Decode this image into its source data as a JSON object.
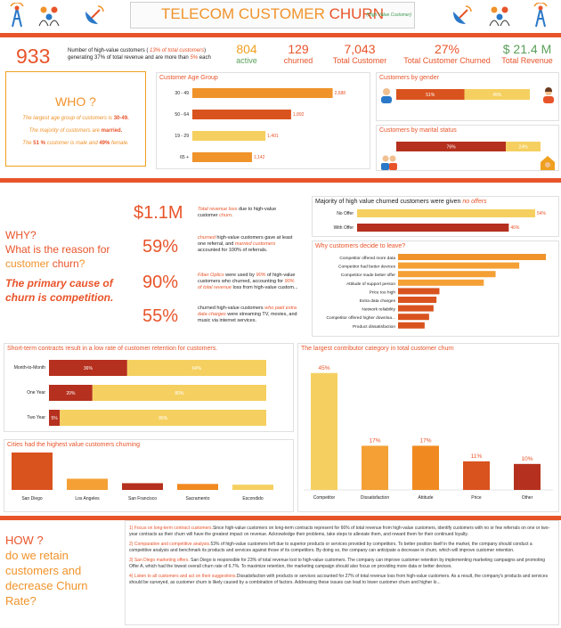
{
  "header": {
    "title_prefix": "TELECOM CUSTOMER ",
    "title_churn": "CHURN",
    "subtitle": "(High Value Customer)"
  },
  "kpis": {
    "high_value_count": "933",
    "high_value_desc_1": "Number of high-value customers ( ",
    "high_value_pct": "13% of total customers",
    "high_value_desc_2": ")",
    "high_value_desc_3": "generating 37% of total revenue and are more than ",
    "high_value_mult": "5%",
    "high_value_desc_4": " each",
    "active_n": "804",
    "active_l": "active",
    "churned_n": "129",
    "churned_l": "churned",
    "total_n": "7,043",
    "total_l": "Total Customer",
    "churnpct_n": "27%",
    "churnpct_l": "Total Customer Churned",
    "revenue_n": "$ 21.4 M",
    "revenue_l": "Total Revenue"
  },
  "who": {
    "heading": "WHO ?",
    "p1a": "The largest age group of customers is ",
    "p1b": "30-49.",
    "p2a": "The majority of customers are ",
    "p2b": "married.",
    "p3a": "The ",
    "p3b": "51 %",
    "p3c": " customer is male and ",
    "p3d": "49%",
    "p3e": " female."
  },
  "why": {
    "l1": "WHY?",
    "l2": "What is the reason for",
    "l3a": "customer ",
    "l3b": "churn",
    "l3c": "?",
    "c1": "The primary cause of",
    "c2": "churn is competition."
  },
  "stats": [
    {
      "n": "$1.1M",
      "t1": "Total revenue loss",
      "t2": " due to high-value",
      "t3": "customer ",
      "t4": "churn",
      "t5": "."
    },
    {
      "n": "59%",
      "t1": "churned",
      "t2": " high-value customers gave at least",
      "t3": "one referral, and ",
      "t4": "married customers",
      "t5": "accounted for 100% of referrals."
    },
    {
      "n": "90%",
      "t1": "Fiber Optics",
      "t2": " were used by ",
      "t3": "90%",
      "t4": " of high-value",
      "t5": "customers who churned, accounting for ",
      "t6": "90%",
      "t7": "of total revenue",
      "t8": " loss from high-value custom..."
    },
    {
      "n": "55%",
      "t1": "churned high-value customers ",
      "t2": "who paid extra",
      "t3": "data charges",
      "t4": " were streaming TV, movies, and",
      "t5": "music via internet services."
    }
  ],
  "how": {
    "l1": "HOW ?",
    "l2": "do we retain",
    "l3": "customers and",
    "l4": "decrease Churn",
    "l5": "Rate?"
  },
  "recs": [
    {
      "t": "1) Focus on long-term contract customers.",
      "b": "Since high-value customers on long-term contracts represent for 66% of total revenue from high-value customers, identify customers with no or few referrals on one or two-year contracts as their churn will have the greatest impact on revenue. Acknowledge their problems, take steps to alleviate them, and reward them for their continued loyalty."
    },
    {
      "t": "2) Comparative and competitive analysis.",
      "b": "53% of high-value customers left due to superior products or services provided by competitors. To better position itself in the market, the company should conduct a competitive analysis and benchmark its products and services against those of its competitors. By doing so, the company can anticipate a decrease in churn, which will improve customer retention."
    },
    {
      "t": "3) San Diego marketing offers.",
      "b": " San Diego is responsible for 23% of total revenue lost to high-value customers. The company can improve customer retention by implementing marketing campaigns and promoting Offer A, which had the lowest overall churn rate of 6.7%. To maximize retention, the marketing campaign should also focus on providing more data or better devices."
    },
    {
      "t": "4) Listen to all customers and act on their suggestions.",
      "b": "Dissatisfaction with products or services accounted for 27% of total revenue loss from high-value customers. As a result, the company's products and services should be surveyed, as customer churn is likely caused by a combination of factors. Addressing these issues can lead to lower customer churn and higher lo..."
    }
  ],
  "colors": {
    "accent": "#e8542a",
    "orange": "#f0932b",
    "yellow": "#f5d060",
    "dark": "#b5301e",
    "mid": "#d9531e"
  },
  "chart_data": [
    {
      "id": "age",
      "type": "bar",
      "title": "Customer Age Group",
      "orientation": "horizontal",
      "categories": [
        "30 - 49",
        "50 - 64",
        "19 - 29",
        "65 +"
      ],
      "values": [
        2688,
        1892,
        1401,
        1142
      ],
      "labels": [
        "2,688",
        "1,892",
        "1,401",
        "1,142"
      ],
      "xlim": [
        0,
        2900
      ]
    },
    {
      "id": "gender",
      "type": "bar",
      "title": "Customers by gender",
      "stacked": true,
      "series": [
        {
          "name": "Male",
          "values": [
            51
          ],
          "label": "51%"
        },
        {
          "name": "Female",
          "values": [
            49
          ],
          "label": "49%"
        }
      ]
    },
    {
      "id": "marital",
      "type": "bar",
      "title": "Customers by marital status",
      "stacked": true,
      "series": [
        {
          "name": "Married",
          "values": [
            76
          ],
          "label": "76%"
        },
        {
          "name": "Single",
          "values": [
            24
          ],
          "label": "24%"
        }
      ]
    },
    {
      "id": "offers",
      "type": "bar",
      "title_a": "Majority of high value churned customers were given ",
      "title_b": "no offers",
      "orientation": "horizontal",
      "categories": [
        "No Offer",
        "With Offer"
      ],
      "values": [
        54,
        46
      ],
      "labels": [
        "54%",
        "46%"
      ]
    },
    {
      "id": "reasons",
      "type": "bar",
      "title": "Why customers decide to leave?",
      "orientation": "horizontal",
      "categories": [
        "Competitor offered more data",
        "Competitor had better devices",
        "Competitor made better offer",
        "Attitude of support person",
        "Price too high",
        "Extra data charges",
        "Network reliability",
        "Competitor offered higher downloa...",
        "Product dissatisfaction"
      ],
      "values": [
        100,
        82,
        66,
        58,
        28,
        26,
        24,
        21,
        18
      ]
    },
    {
      "id": "contracts",
      "type": "bar",
      "title": "Short-term contracts result in a low rate of customer retention for customers.",
      "orientation": "horizontal",
      "stacked": true,
      "categories": [
        "Month-to-Month",
        "One Year",
        "Two Year"
      ],
      "series": [
        {
          "name": "Churned",
          "values": [
            36,
            20,
            5
          ],
          "labels": [
            "36%",
            "20%",
            "5%"
          ]
        },
        {
          "name": "Stayed",
          "values": [
            64,
            80,
            95
          ],
          "labels": [
            "64%",
            "80%",
            "95%"
          ]
        }
      ]
    },
    {
      "id": "category",
      "type": "bar",
      "title": "The largest contributor category in total customer churn",
      "categories": [
        "Competitor",
        "Dissatisfaction",
        "Attitude",
        "Price",
        "Other"
      ],
      "values": [
        45,
        17,
        17,
        11,
        10
      ],
      "labels": [
        "45%",
        "17%",
        "17%",
        "11%",
        "10%"
      ],
      "ylim": [
        0,
        48
      ]
    },
    {
      "id": "cities",
      "type": "bar",
      "title": "Cities had the highest value customers churning",
      "categories": [
        "San Diego",
        "Los Angeles",
        "San Francisco",
        "Sacramento",
        "Escondido"
      ],
      "values": [
        100,
        30,
        18,
        16,
        14
      ]
    }
  ]
}
